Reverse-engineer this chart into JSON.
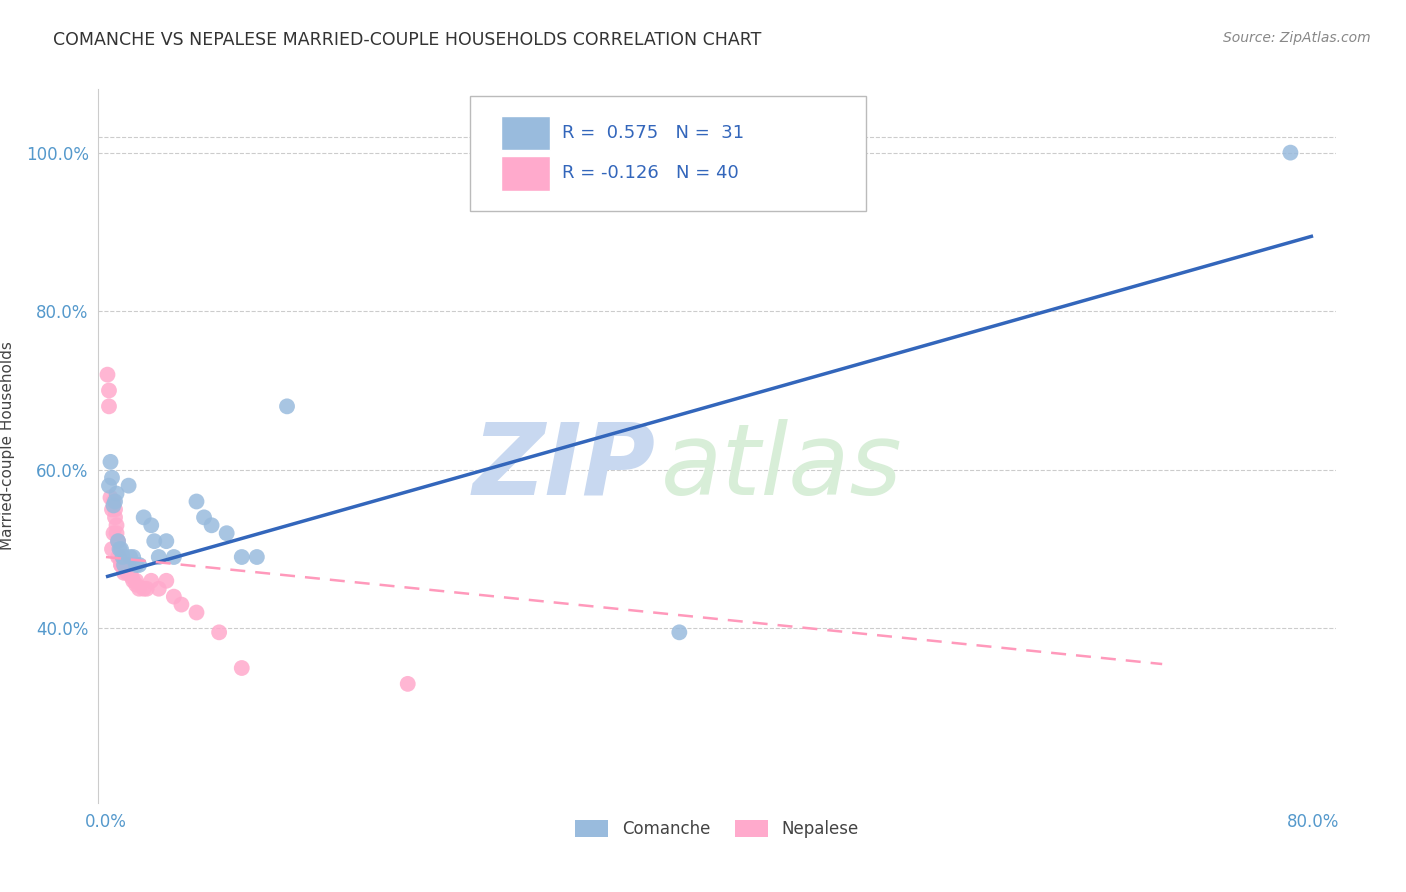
{
  "title": "COMANCHE VS NEPALESE MARRIED-COUPLE HOUSEHOLDS CORRELATION CHART",
  "source": "Source: ZipAtlas.com",
  "ylabel": "Married-couple Households",
  "xlim": [
    -0.005,
    0.815
  ],
  "ylim": [
    0.18,
    1.08
  ],
  "xtick_vals": [
    0.0,
    0.1,
    0.2,
    0.3,
    0.4,
    0.5,
    0.6,
    0.7,
    0.8
  ],
  "xtick_labels": [
    "0.0%",
    "",
    "",
    "",
    "",
    "",
    "",
    "",
    "80.0%"
  ],
  "ytick_vals": [
    0.4,
    0.6,
    0.8,
    1.0
  ],
  "ytick_labels": [
    "40.0%",
    "60.0%",
    "80.0%",
    "100.0%"
  ],
  "comanche_R": 0.575,
  "comanche_N": 31,
  "nepalese_R": -0.126,
  "nepalese_N": 40,
  "comanche_color": "#99BBDD",
  "nepalese_color": "#FFAACC",
  "comanche_line_color": "#3366BB",
  "nepalese_line_color": "#FF99BB",
  "comanche_x": [
    0.002,
    0.003,
    0.004,
    0.005,
    0.006,
    0.007,
    0.008,
    0.009,
    0.01,
    0.011,
    0.012,
    0.015,
    0.016,
    0.018,
    0.02,
    0.022,
    0.025,
    0.03,
    0.032,
    0.035,
    0.04,
    0.045,
    0.06,
    0.065,
    0.07,
    0.08,
    0.09,
    0.1,
    0.12,
    0.38,
    0.785
  ],
  "comanche_y": [
    0.58,
    0.61,
    0.59,
    0.555,
    0.56,
    0.57,
    0.51,
    0.5,
    0.5,
    0.49,
    0.48,
    0.58,
    0.49,
    0.49,
    0.48,
    0.48,
    0.54,
    0.53,
    0.51,
    0.49,
    0.51,
    0.49,
    0.56,
    0.54,
    0.53,
    0.52,
    0.49,
    0.49,
    0.68,
    0.395,
    1.0
  ],
  "nepalese_x": [
    0.001,
    0.002,
    0.002,
    0.003,
    0.004,
    0.004,
    0.005,
    0.005,
    0.006,
    0.006,
    0.007,
    0.007,
    0.008,
    0.008,
    0.009,
    0.01,
    0.01,
    0.011,
    0.012,
    0.013,
    0.014,
    0.015,
    0.015,
    0.016,
    0.017,
    0.018,
    0.02,
    0.02,
    0.022,
    0.025,
    0.027,
    0.03,
    0.035,
    0.04,
    0.045,
    0.05,
    0.06,
    0.075,
    0.09,
    0.2
  ],
  "nepalese_y": [
    0.72,
    0.7,
    0.68,
    0.565,
    0.55,
    0.5,
    0.52,
    0.56,
    0.55,
    0.54,
    0.53,
    0.52,
    0.51,
    0.49,
    0.49,
    0.48,
    0.48,
    0.48,
    0.47,
    0.48,
    0.47,
    0.47,
    0.48,
    0.47,
    0.465,
    0.46,
    0.46,
    0.455,
    0.45,
    0.45,
    0.45,
    0.46,
    0.45,
    0.46,
    0.44,
    0.43,
    0.42,
    0.395,
    0.35,
    0.33
  ],
  "comanche_line_x": [
    0.0,
    0.8
  ],
  "comanche_line_y": [
    0.465,
    0.895
  ],
  "nepalese_line_x": [
    0.0,
    0.7
  ],
  "nepalese_line_y": [
    0.49,
    0.355
  ],
  "watermark_zip": "ZIP",
  "watermark_atlas": "atlas",
  "background_color": "#FFFFFF",
  "grid_color": "#CCCCCC",
  "legend_R_color": "#3366BB",
  "legend_N_color": "#3366BB"
}
